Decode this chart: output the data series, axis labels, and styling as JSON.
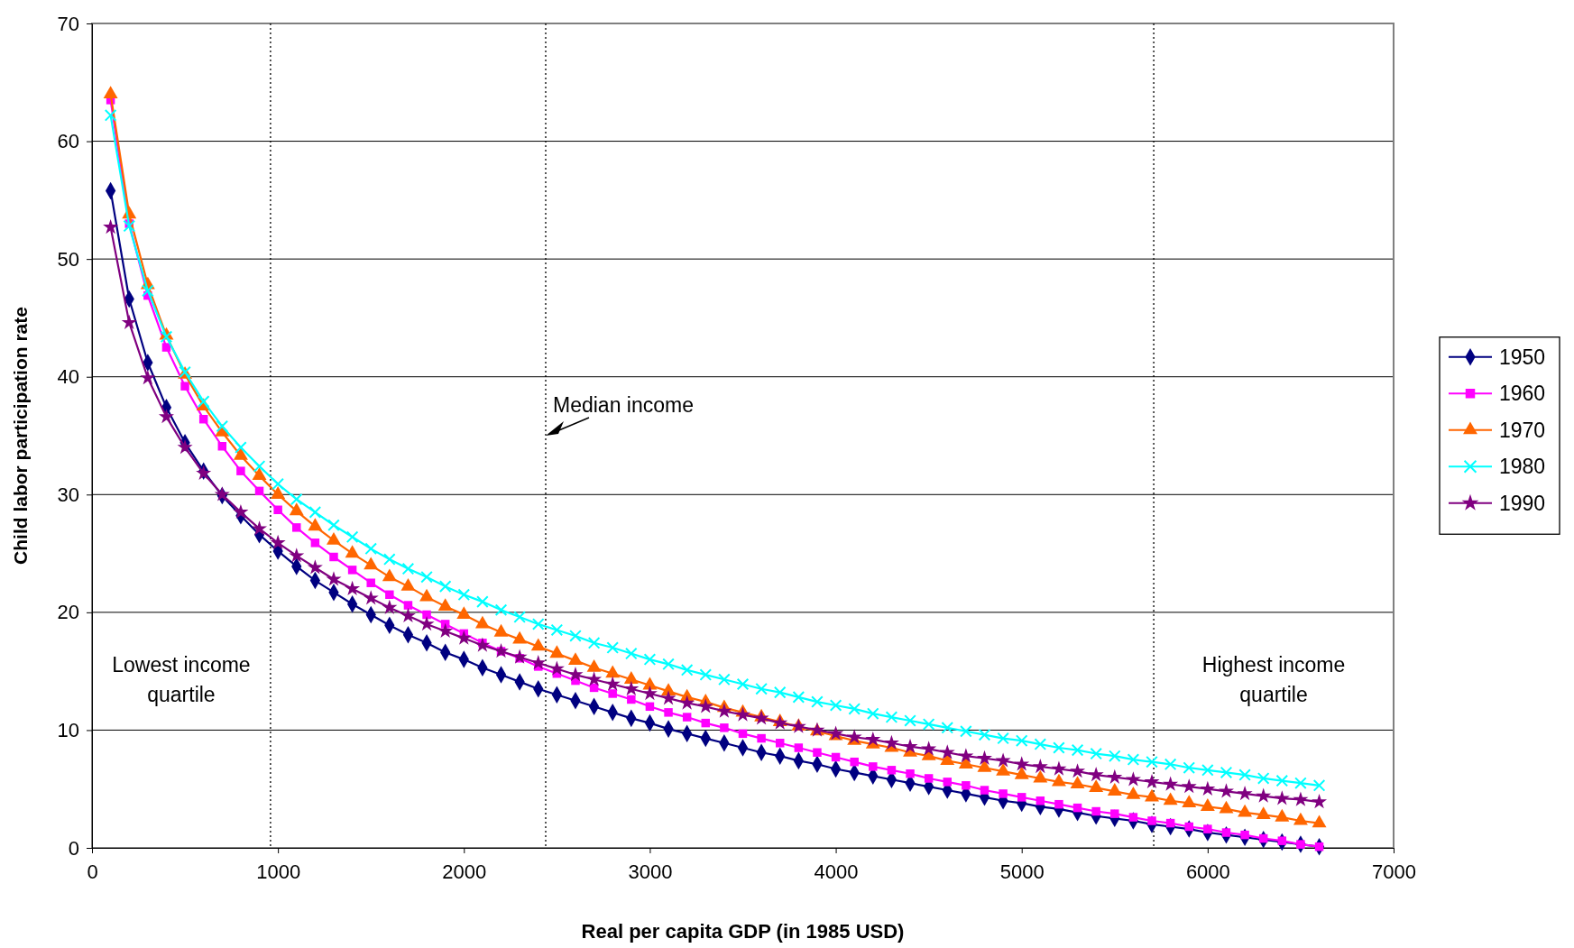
{
  "chart_data": {
    "type": "line",
    "xlabel": "Real per capita GDP (in 1985 USD)",
    "ylabel": "Child labor participation rate",
    "x": [
      100,
      200,
      300,
      400,
      500,
      600,
      700,
      800,
      900,
      1000,
      1100,
      1200,
      1300,
      1400,
      1500,
      1600,
      1700,
      1800,
      1900,
      2000,
      2100,
      2200,
      2300,
      2400,
      2500,
      2600,
      2700,
      2800,
      2900,
      3000,
      3100,
      3200,
      3300,
      3400,
      3500,
      3600,
      3700,
      3800,
      3900,
      4000,
      4100,
      4200,
      4300,
      4400,
      4500,
      4600,
      4700,
      4800,
      4900,
      5000,
      5100,
      5200,
      5300,
      5400,
      5500,
      5600,
      5700,
      5800,
      5900,
      6000,
      6100,
      6200,
      6300,
      6400,
      6500,
      6600
    ],
    "series": [
      {
        "name": "1950",
        "color": "#000080",
        "marker": "diamond",
        "values": [
          55.8,
          46.6,
          41.2,
          37.4,
          34.4,
          32.0,
          29.9,
          28.2,
          26.6,
          25.2,
          23.9,
          22.7,
          21.7,
          20.7,
          19.8,
          18.9,
          18.1,
          17.4,
          16.6,
          16.0,
          15.3,
          14.7,
          14.1,
          13.5,
          13.0,
          12.5,
          12.0,
          11.5,
          11.0,
          10.6,
          10.1,
          9.7,
          9.3,
          8.9,
          8.5,
          8.1,
          7.8,
          7.4,
          7.1,
          6.7,
          6.4,
          6.1,
          5.8,
          5.5,
          5.2,
          4.9,
          4.6,
          4.3,
          4.0,
          3.8,
          3.5,
          3.3,
          3.0,
          2.7,
          2.5,
          2.3,
          2.0,
          1.8,
          1.6,
          1.3,
          1.1,
          0.9,
          0.7,
          0.5,
          0.3,
          0.1
        ]
      },
      {
        "name": "1960",
        "color": "#ff00ff",
        "marker": "square",
        "values": [
          63.5,
          53.0,
          46.9,
          42.5,
          39.2,
          36.4,
          34.1,
          32.0,
          30.3,
          28.7,
          27.2,
          25.9,
          24.7,
          23.6,
          22.5,
          21.5,
          20.6,
          19.8,
          19.0,
          18.2,
          17.4,
          16.7,
          16.1,
          15.4,
          14.8,
          14.2,
          13.6,
          13.1,
          12.6,
          12.0,
          11.5,
          11.1,
          10.6,
          10.2,
          9.7,
          9.3,
          8.9,
          8.5,
          8.1,
          7.7,
          7.3,
          6.9,
          6.6,
          6.3,
          5.9,
          5.6,
          5.3,
          4.9,
          4.6,
          4.3,
          4.0,
          3.7,
          3.4,
          3.1,
          2.9,
          2.6,
          2.3,
          2.1,
          1.8,
          1.6,
          1.3,
          1.1,
          0.8,
          0.6,
          0.3,
          0.1
        ]
      },
      {
        "name": "1970",
        "color": "#ff6600",
        "marker": "triangle",
        "values": [
          64.0,
          53.8,
          47.8,
          43.5,
          40.2,
          37.5,
          35.3,
          33.3,
          31.6,
          30.0,
          28.6,
          27.3,
          26.1,
          25.0,
          24.0,
          23.0,
          22.2,
          21.3,
          20.5,
          19.8,
          19.0,
          18.3,
          17.7,
          17.1,
          16.5,
          15.9,
          15.3,
          14.8,
          14.3,
          13.8,
          13.3,
          12.8,
          12.4,
          11.9,
          11.5,
          11.1,
          10.7,
          10.3,
          9.9,
          9.5,
          9.1,
          8.8,
          8.5,
          8.1,
          7.8,
          7.4,
          7.1,
          6.8,
          6.5,
          6.2,
          5.9,
          5.6,
          5.4,
          5.1,
          4.8,
          4.5,
          4.3,
          4.0,
          3.8,
          3.5,
          3.3,
          3.0,
          2.8,
          2.6,
          2.3,
          2.1
        ]
      },
      {
        "name": "1980",
        "color": "#00ffff",
        "marker": "cross",
        "values": [
          62.2,
          52.8,
          47.3,
          43.4,
          40.4,
          37.9,
          35.8,
          34.0,
          32.4,
          30.9,
          29.6,
          28.5,
          27.4,
          26.4,
          25.4,
          24.5,
          23.7,
          23.0,
          22.2,
          21.5,
          20.9,
          20.2,
          19.6,
          19.0,
          18.5,
          18.0,
          17.4,
          17.0,
          16.5,
          16.0,
          15.6,
          15.1,
          14.7,
          14.3,
          13.9,
          13.5,
          13.2,
          12.8,
          12.4,
          12.1,
          11.8,
          11.4,
          11.1,
          10.8,
          10.5,
          10.2,
          9.9,
          9.6,
          9.3,
          9.1,
          8.8,
          8.5,
          8.3,
          8.0,
          7.8,
          7.5,
          7.3,
          7.1,
          6.8,
          6.6,
          6.4,
          6.2,
          5.9,
          5.7,
          5.5,
          5.3
        ]
      },
      {
        "name": "1990",
        "color": "#800080",
        "marker": "star",
        "values": [
          52.7,
          44.6,
          39.9,
          36.6,
          34.0,
          31.8,
          30.0,
          28.5,
          27.1,
          25.9,
          24.8,
          23.8,
          22.8,
          22.0,
          21.2,
          20.4,
          19.7,
          19.0,
          18.4,
          17.8,
          17.2,
          16.7,
          16.2,
          15.7,
          15.2,
          14.7,
          14.3,
          13.9,
          13.5,
          13.1,
          12.7,
          12.3,
          12.0,
          11.6,
          11.3,
          11.0,
          10.6,
          10.3,
          10.0,
          9.7,
          9.4,
          9.2,
          8.9,
          8.6,
          8.4,
          8.1,
          7.8,
          7.6,
          7.4,
          7.1,
          6.9,
          6.7,
          6.5,
          6.2,
          6.0,
          5.8,
          5.6,
          5.4,
          5.2,
          5.0,
          4.8,
          4.6,
          4.4,
          4.2,
          4.1,
          3.9
        ]
      }
    ],
    "xlim": [
      0,
      7000
    ],
    "xticks": [
      0,
      1000,
      2000,
      3000,
      4000,
      5000,
      6000,
      7000
    ],
    "ylim": [
      0,
      70
    ],
    "yticks": [
      0,
      10,
      20,
      30,
      40,
      50,
      60,
      70
    ],
    "grid": "y",
    "legend": "right",
    "line_style": "solid",
    "ref_lines": [
      {
        "axis": "x",
        "value": 960,
        "line_style": "dotted",
        "color": "#000000"
      },
      {
        "axis": "x",
        "value": 2440,
        "line_style": "dotted",
        "color": "#000000",
        "label": "Median income"
      },
      {
        "axis": "x",
        "value": 5710,
        "line_style": "dotted",
        "color": "#000000"
      }
    ],
    "annotations": [
      "Lowest income quartile",
      "Highest income quartile"
    ]
  }
}
